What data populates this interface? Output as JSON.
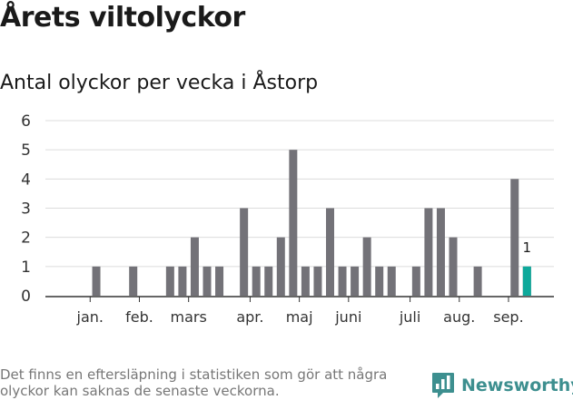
{
  "title": "Årets viltolyckor",
  "subtitle": "Antal olyckor per vecka i Åstorp",
  "footnote": "Det finns en eftersläpning i statistiken som gör att några olyckor kan saknas de senaste veckorna.",
  "brand": {
    "name": "Newsworthy",
    "icon": "newsworthy-logo-icon",
    "color": "#3d8f8f"
  },
  "chart_data": {
    "type": "bar",
    "x": [
      1,
      2,
      3,
      4,
      5,
      6,
      7,
      8,
      9,
      10,
      11,
      12,
      13,
      14,
      15,
      16,
      17,
      18,
      19,
      20,
      21,
      22,
      23,
      24,
      25,
      26,
      27,
      28,
      29,
      30,
      31,
      32,
      33,
      34,
      35,
      36,
      37,
      38,
      39
    ],
    "values": [
      0,
      1,
      0,
      0,
      1,
      0,
      0,
      1,
      1,
      2,
      1,
      1,
      0,
      3,
      1,
      1,
      2,
      5,
      1,
      1,
      3,
      1,
      1,
      2,
      1,
      1,
      0,
      1,
      3,
      3,
      2,
      0,
      1,
      0,
      0,
      4,
      1,
      0,
      0
    ],
    "ylim": [
      0,
      6
    ],
    "yticks": [
      0,
      1,
      2,
      3,
      4,
      5,
      6
    ],
    "month_labels": [
      {
        "label": "jan.",
        "week": 1.5
      },
      {
        "label": "feb.",
        "week": 5.5
      },
      {
        "label": "mars",
        "week": 9.5
      },
      {
        "label": "apr.",
        "week": 14.5
      },
      {
        "label": "maj",
        "week": 18.5
      },
      {
        "label": "juni",
        "week": 22.5
      },
      {
        "label": "juli",
        "week": 27.5
      },
      {
        "label": "aug.",
        "week": 31.5
      },
      {
        "label": "sep.",
        "week": 35.5
      }
    ],
    "highlight": {
      "week": 37,
      "value": 1,
      "label": "1",
      "color": "#0ea99b"
    },
    "bar_color": "#737278",
    "grid": true,
    "legend": false
  }
}
